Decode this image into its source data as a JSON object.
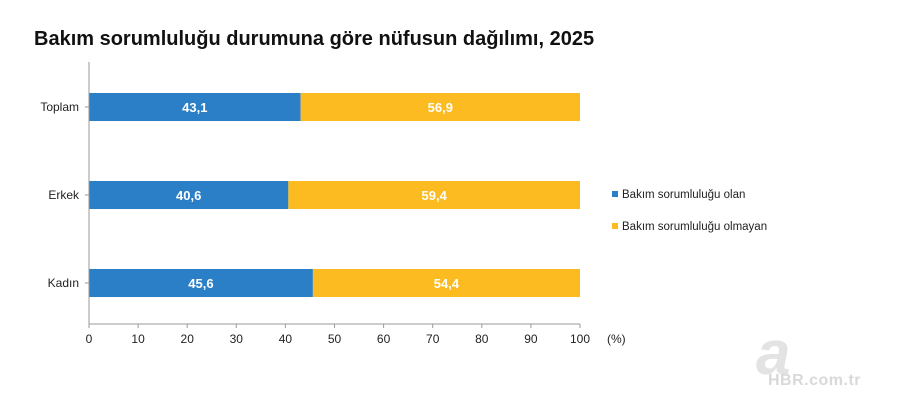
{
  "chart_data": {
    "type": "bar",
    "orientation": "horizontal",
    "stacked": true,
    "title": "Bakım sorumluluğu durumuna göre nüfusun dağılımı, 2025",
    "categories": [
      "Toplam",
      "Erkek",
      "Kadın"
    ],
    "series": [
      {
        "name": "Bakım sorumluluğu olan",
        "values": [
          43.1,
          40.6,
          45.6
        ],
        "labels": [
          "43,1",
          "40,6",
          "45,6"
        ],
        "color": "#2b7fc6"
      },
      {
        "name": "Bakım sorumluluğu olmayan",
        "values": [
          56.9,
          59.4,
          54.4
        ],
        "labels": [
          "56,9",
          "59,4",
          "54,4"
        ],
        "color": "#fbbb21"
      }
    ],
    "xlim": [
      0,
      100
    ],
    "xticks": [
      0,
      10,
      20,
      30,
      40,
      50,
      60,
      70,
      80,
      90,
      100
    ],
    "xunit": "(%)",
    "grid": false,
    "legend_position": "right"
  },
  "watermark": {
    "logo_letter": "a",
    "text": "HBR.com.tr",
    "color": "#d9d9d9"
  }
}
